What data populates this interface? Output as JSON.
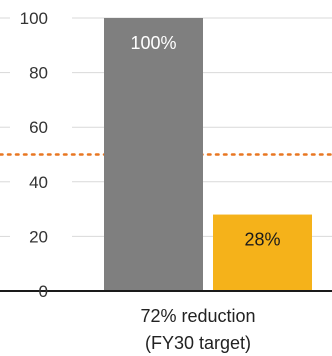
{
  "chart_data": {
    "type": "bar",
    "categories": [
      "",
      ""
    ],
    "values": [
      100,
      28
    ],
    "data_labels": [
      "100%",
      "28%"
    ],
    "bar_colors": [
      "#7f7f7f",
      "#f5b21a"
    ],
    "data_label_colors": [
      "#ffffff",
      "#1a1a1a"
    ],
    "ylim": [
      0,
      100
    ],
    "yticks": [
      0,
      20,
      40,
      60,
      80,
      100
    ],
    "grid": true,
    "grid_color": "#d9d9d9",
    "axis_color": "#1a1a1a",
    "reference_line": {
      "y": 50,
      "style": "dotted",
      "color": "#e87722"
    },
    "category_caption": [
      "72% reduction",
      "(FY30 target)"
    ]
  }
}
